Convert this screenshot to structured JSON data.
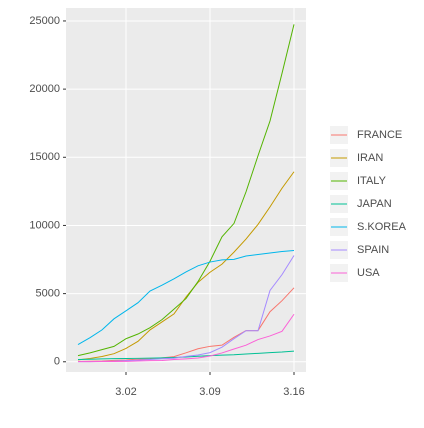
{
  "chart_data": {
    "type": "line",
    "x": [
      null,
      null,
      null,
      null,
      "3.02",
      null,
      null,
      null,
      null,
      null,
      null,
      "3.09",
      null,
      null,
      null,
      null,
      null,
      null,
      "3.16"
    ],
    "series": [
      {
        "name": "FRANCE",
        "color": "#F8766D",
        "values": [
          18,
          38,
          57,
          100,
          130,
          191,
          204,
          288,
          380,
          656,
          957,
          1134,
          1217,
          1792,
          2289,
          2289,
          3672,
          4480,
          5423
        ]
      },
      {
        "name": "IRAN",
        "color": "#C49A00",
        "values": [
          139,
          245,
          388,
          593,
          978,
          1501,
          2336,
          2922,
          3513,
          4747,
          5823,
          6566,
          7161,
          8042,
          9000,
          10075,
          11364,
          12729,
          13938
        ]
      },
      {
        "name": "ITALY",
        "color": "#53B400",
        "values": [
          453,
          655,
          888,
          1128,
          1694,
          2036,
          2502,
          3089,
          3858,
          4636,
          5883,
          7375,
          9172,
          10149,
          12462,
          15113,
          17660,
          21157,
          24747
        ]
      },
      {
        "name": "JAPAN",
        "color": "#00C094",
        "values": [
          164,
          186,
          210,
          230,
          239,
          254,
          268,
          284,
          317,
          349,
          408,
          455,
          488,
          514,
          568,
          620,
          675,
          716,
          780
        ]
      },
      {
        "name": "S.KOREA",
        "color": "#00B6EB",
        "values": [
          1261,
          1766,
          2337,
          3150,
          3736,
          4335,
          5186,
          5621,
          6088,
          6593,
          7041,
          7314,
          7478,
          7513,
          7755,
          7869,
          7979,
          8086,
          8162
        ]
      },
      {
        "name": "SPAIN",
        "color": "#A58AFF",
        "values": [
          13,
          15,
          32,
          45,
          84,
          120,
          165,
          222,
          259,
          400,
          500,
          673,
          1073,
          1695,
          2277,
          2277,
          5232,
          6391,
          7798
        ]
      },
      {
        "name": "USA",
        "color": "#FB61D7",
        "values": [
          15,
          15,
          16,
          24,
          30,
          53,
          80,
          98,
          164,
          214,
          279,
          423,
          647,
          937,
          1215,
          1629,
          1896,
          2234,
          3487
        ]
      }
    ],
    "ylim": [
      -750,
      25950
    ],
    "yticks": [
      0,
      5000,
      10000,
      15000,
      20000,
      25000
    ],
    "grid": true
  }
}
